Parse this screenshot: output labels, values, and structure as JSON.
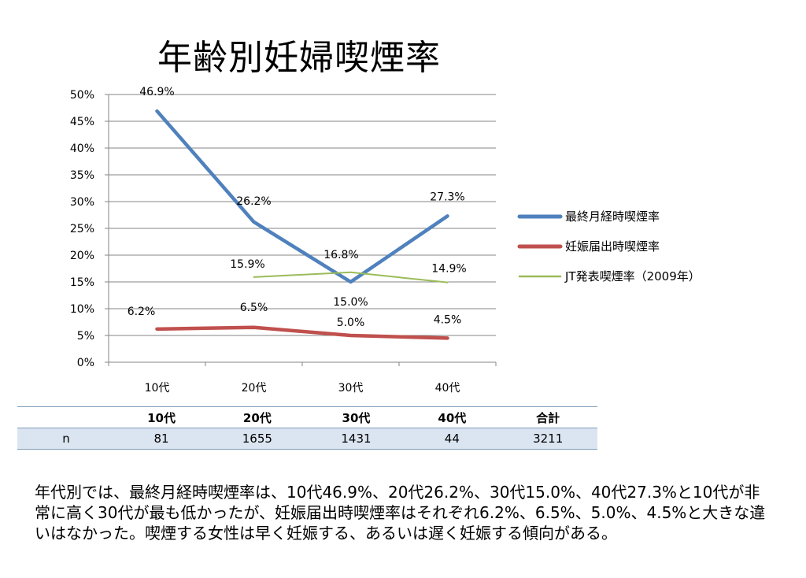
{
  "title": "年齢別妊婦喫煙率",
  "chart_data": {
    "type": "line",
    "categories": [
      "10代",
      "20代",
      "30代",
      "40代"
    ],
    "y_ticks": [
      "0%",
      "5%",
      "10%",
      "15%",
      "20%",
      "25%",
      "30%",
      "35%",
      "40%",
      "45%",
      "50%"
    ],
    "ylim": [
      0,
      50
    ],
    "grid": true,
    "legend_position": "right",
    "series": [
      {
        "name": "最終月経時喫煙率",
        "color": "#4f81bd",
        "values": [
          46.9,
          26.2,
          15.0,
          27.3
        ],
        "labels": [
          "46.9%",
          "26.2%",
          "15.0%",
          "27.3%"
        ]
      },
      {
        "name": "妊娠届出時喫煙率",
        "color": "#c0504d",
        "values": [
          6.2,
          6.5,
          5.0,
          4.5
        ],
        "labels": [
          "6.2%",
          "6.5%",
          "5.0%",
          "4.5%"
        ]
      },
      {
        "name": "JT発表喫煙率（2009年）",
        "color": "#9bbb59",
        "values": [
          null,
          15.9,
          16.8,
          14.9
        ],
        "labels": [
          null,
          "15.9%",
          "16.8%",
          "14.9%"
        ]
      }
    ]
  },
  "table": {
    "headers": [
      "",
      "10代",
      "20代",
      "30代",
      "40代",
      "合計"
    ],
    "rows": [
      [
        "n",
        "81",
        "1655",
        "1431",
        "44",
        "3211"
      ]
    ]
  },
  "summary": "年代別では、最終月経時喫煙率は、10代46.9%、20代26.2%、30代15.0%、40代27.3%と10代が非常に高く30代が最も低かったが、妊娠届出時喫煙率はそれぞれ6.2%、6.5%、5.0%、4.5%と大きな違いはなかった。喫煙する女性は早く妊娠する、あるいは遅く妊娠する傾向がある。"
}
